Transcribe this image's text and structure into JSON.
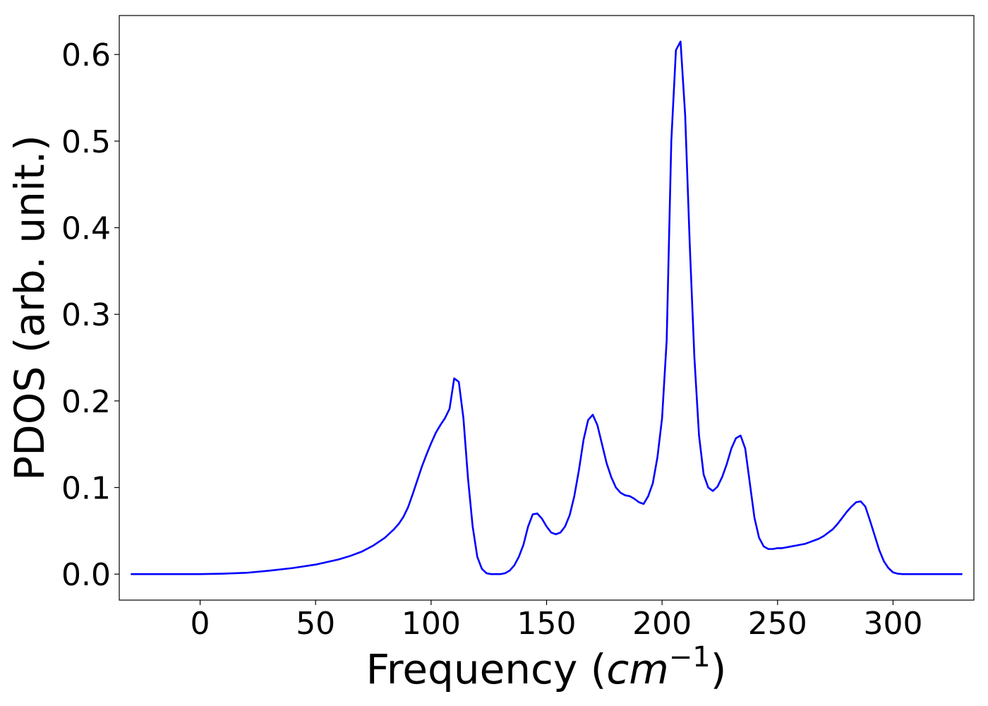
{
  "chart_data": {
    "type": "line",
    "title": "",
    "xlabel": "Frequency (",
    "xlabel_math": "cm",
    "xlabel_sup": "−1",
    "xlabel_close": ")",
    "ylabel": "PDOS (arb. unit.)",
    "xlim": [
      -35,
      335
    ],
    "ylim": [
      -0.03,
      0.645
    ],
    "xticks": [
      0,
      50,
      100,
      150,
      200,
      250,
      300
    ],
    "xtick_labels": [
      "0",
      "50",
      "100",
      "150",
      "200",
      "250",
      "300"
    ],
    "yticks": [
      0.0,
      0.1,
      0.2,
      0.3,
      0.4,
      0.5,
      0.6
    ],
    "ytick_labels": [
      "0.0",
      "0.1",
      "0.2",
      "0.3",
      "0.4",
      "0.5",
      "0.6"
    ],
    "grid": false,
    "series": [
      {
        "color": "#0000ff",
        "x": [
          -30,
          -20,
          -10,
          0,
          10,
          20,
          30,
          40,
          50,
          60,
          65,
          70,
          75,
          80,
          82,
          84,
          86,
          88,
          90,
          92,
          94,
          96,
          98,
          100,
          102,
          104,
          106,
          108,
          110,
          112,
          114,
          116,
          118,
          120,
          122,
          124,
          126,
          128,
          130,
          132,
          134,
          136,
          138,
          140,
          142,
          144,
          146,
          148,
          150,
          152,
          154,
          156,
          158,
          160,
          162,
          164,
          166,
          168,
          170,
          172,
          174,
          176,
          178,
          180,
          182,
          184,
          186,
          188,
          190,
          192,
          194,
          196,
          198,
          200,
          202,
          204,
          206,
          208,
          210,
          212,
          214,
          216,
          218,
          220,
          222,
          224,
          226,
          228,
          230,
          232,
          234,
          236,
          238,
          240,
          242,
          244,
          246,
          248,
          250,
          252,
          254,
          256,
          258,
          260,
          262,
          264,
          266,
          268,
          270,
          272,
          274,
          276,
          278,
          280,
          282,
          284,
          286,
          288,
          290,
          292,
          294,
          296,
          298,
          300,
          302,
          304,
          306,
          310,
          320,
          330
        ],
        "y": [
          0.0,
          0.0,
          0.0,
          0.0,
          0.0005,
          0.0015,
          0.004,
          0.007,
          0.011,
          0.017,
          0.021,
          0.026,
          0.033,
          0.042,
          0.047,
          0.052,
          0.058,
          0.066,
          0.077,
          0.092,
          0.108,
          0.124,
          0.138,
          0.151,
          0.163,
          0.172,
          0.18,
          0.191,
          0.226,
          0.222,
          0.18,
          0.11,
          0.055,
          0.02,
          0.006,
          0.001,
          0.0,
          0.0,
          0.0,
          0.001,
          0.004,
          0.01,
          0.02,
          0.034,
          0.055,
          0.069,
          0.07,
          0.064,
          0.055,
          0.048,
          0.046,
          0.048,
          0.055,
          0.068,
          0.09,
          0.12,
          0.155,
          0.178,
          0.184,
          0.172,
          0.15,
          0.128,
          0.112,
          0.1,
          0.094,
          0.091,
          0.09,
          0.087,
          0.083,
          0.081,
          0.09,
          0.105,
          0.135,
          0.18,
          0.27,
          0.5,
          0.605,
          0.615,
          0.53,
          0.38,
          0.25,
          0.16,
          0.115,
          0.1,
          0.096,
          0.101,
          0.112,
          0.127,
          0.145,
          0.157,
          0.16,
          0.145,
          0.105,
          0.065,
          0.042,
          0.032,
          0.029,
          0.029,
          0.03,
          0.03,
          0.031,
          0.032,
          0.033,
          0.034,
          0.035,
          0.037,
          0.039,
          0.041,
          0.044,
          0.048,
          0.052,
          0.058,
          0.065,
          0.072,
          0.078,
          0.083,
          0.084,
          0.078,
          0.062,
          0.045,
          0.028,
          0.015,
          0.007,
          0.002,
          0.0005,
          0.0,
          0.0,
          0.0,
          0.0,
          0.0
        ]
      }
    ]
  }
}
